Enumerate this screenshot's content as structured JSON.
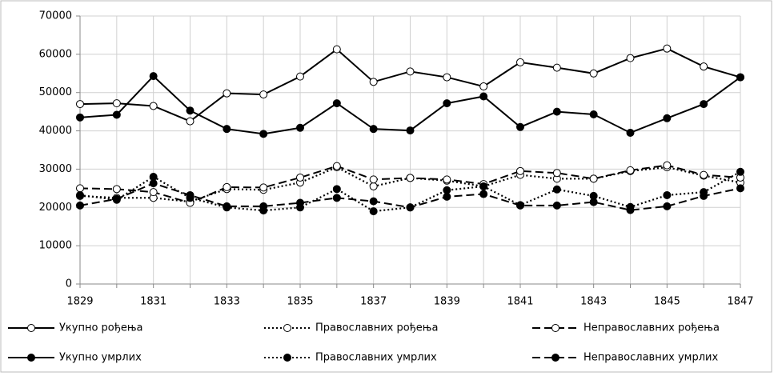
{
  "chart_data": {
    "type": "line",
    "categories": [
      "1829",
      null,
      "1831",
      null,
      "1833",
      null,
      "1835",
      null,
      "1837",
      null,
      "1839",
      null,
      "1841",
      null,
      "1843",
      null,
      "1845",
      null,
      "1847"
    ],
    "ylim": [
      0,
      70000
    ],
    "yticks": [
      0,
      10000,
      20000,
      30000,
      40000,
      50000,
      60000,
      70000
    ],
    "grid": true,
    "series": [
      {
        "name": "Укупно рођења",
        "color": "#000000",
        "style": "solid",
        "marker": "open",
        "values": [
          47000,
          47200,
          46500,
          42500,
          49800,
          49500,
          54200,
          61300,
          52800,
          55500,
          54000,
          51600,
          57900,
          56500,
          55000,
          59000,
          61500,
          56800,
          54000
        ]
      },
      {
        "name": "Православних рођења",
        "color": "#000000",
        "style": "dotted",
        "marker": "open",
        "values": [
          23000,
          22500,
          22500,
          21500,
          24800,
          24600,
          26500,
          30500,
          25500,
          27700,
          27000,
          25500,
          28500,
          27500,
          27500,
          29500,
          30500,
          28300,
          26500
        ]
      },
      {
        "name": "Неправославних рођења",
        "color": "#000000",
        "style": "dashed",
        "marker": "open",
        "values": [
          25000,
          24800,
          24000,
          21200,
          25300,
          25200,
          27800,
          30800,
          27300,
          27700,
          27300,
          26100,
          29500,
          29000,
          27500,
          29700,
          31000,
          28500,
          27800
        ]
      },
      {
        "name": "Укупно умрлих",
        "color": "#000000",
        "style": "solid",
        "marker": "filled",
        "values": [
          43500,
          44200,
          54300,
          45300,
          40500,
          39200,
          40800,
          47200,
          40500,
          40100,
          47200,
          49000,
          41000,
          45000,
          44300,
          39500,
          43300,
          47000,
          54000
        ]
      },
      {
        "name": "Православних умрлих",
        "color": "#000000",
        "style": "dotted",
        "marker": "filled",
        "values": [
          23200,
          22000,
          28000,
          22500,
          20000,
          19200,
          20000,
          24800,
          19000,
          20000,
          24500,
          25500,
          20600,
          24700,
          23000,
          20100,
          23200,
          24000,
          29300
        ]
      },
      {
        "name": "Неправославних умрлих",
        "color": "#000000",
        "style": "dashed",
        "marker": "filled",
        "values": [
          20500,
          22200,
          26300,
          23200,
          20300,
          20300,
          21200,
          22500,
          21600,
          20000,
          22800,
          23500,
          20500,
          20500,
          21400,
          19300,
          20300,
          23000,
          25000
        ]
      }
    ]
  }
}
